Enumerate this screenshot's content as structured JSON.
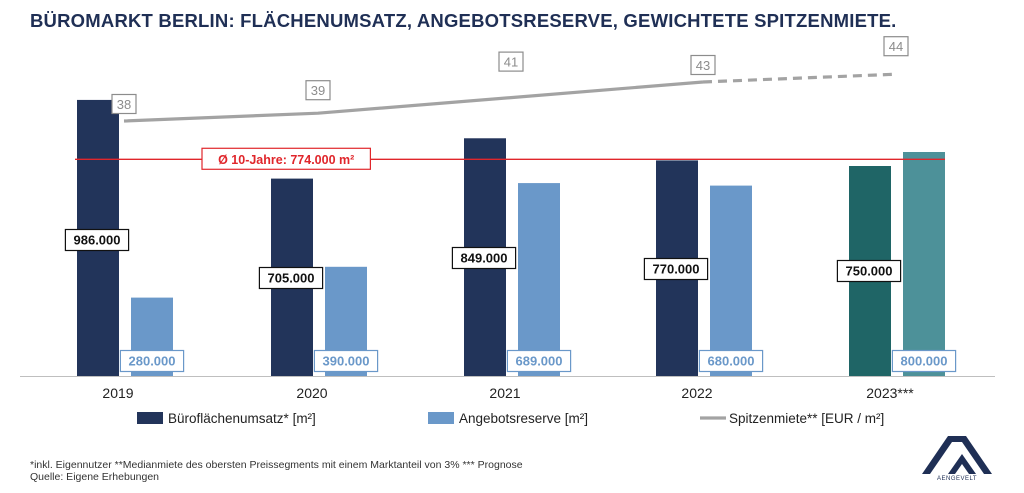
{
  "title": "BÜROMARKT BERLIN: FLÄCHENUMSATZ, ANGEBOTSRESERVE, GEWICHTETE SPITZENMIETE.",
  "footnote_line1": "*inkl. Eigennutzer **Medianmiete des obersten Preissegments mit einem Marktanteil von 3% *** Prognose",
  "footnote_line2": "Quelle: Eigene Erhebungen",
  "logo_text": "AENGEVELT",
  "colors": {
    "navy": "#22345a",
    "lightblue": "#6a98c9",
    "teal": "#1f6566",
    "lightteal": "#4d9199",
    "gray_line": "#a3a3a3",
    "red": "#e0262b"
  },
  "chart_data": {
    "type": "bar",
    "categories": [
      "2019",
      "2020",
      "2021",
      "2022",
      "2023***"
    ],
    "series": [
      {
        "name": "Büroflächenumsatz* [m²]",
        "values": [
          986000,
          705000,
          849000,
          770000,
          750000
        ]
      },
      {
        "name": "Angebotsreserve [m²]",
        "values": [
          280000,
          390000,
          689000,
          680000,
          800000
        ]
      },
      {
        "name": "Spitzenmiete** [EUR / m²]",
        "type": "line",
        "values": [
          38,
          39,
          41,
          43,
          44
        ],
        "dashed_from_index": 3
      }
    ],
    "value_labels": {
      "bars1": [
        "986.000",
        "705.000",
        "849.000",
        "770.000",
        "750.000"
      ],
      "bars2": [
        "280.000",
        "390.000",
        "689.000",
        "680.000",
        "800.000"
      ],
      "line": [
        "38",
        "39",
        "41",
        "43",
        "44"
      ]
    },
    "reference_line": {
      "value": 774000,
      "label": "Ø 10-Jahre: 774.000 m²"
    },
    "legend_position": "bottom",
    "ylim": [
      0,
      1000000
    ],
    "grid": false
  }
}
